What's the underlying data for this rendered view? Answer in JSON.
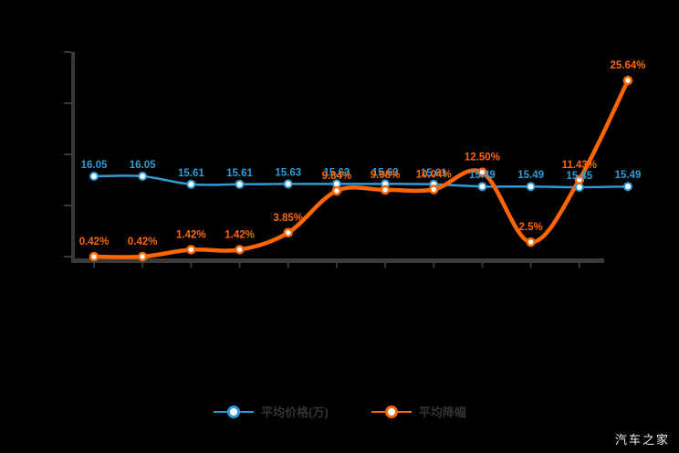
{
  "watermark": "汽车之家",
  "colors": {
    "background": "#000000",
    "axis": "#3a3a3a",
    "blue": "#2f9bd6",
    "orange": "#ff6600",
    "legend_text": "#333333",
    "watermark_text": "#f2f2f2",
    "marker_fill": "#ffffff"
  },
  "legend": [
    {
      "label": "平均价格(万)",
      "color": "#2f9bd6"
    },
    {
      "label": "平均降幅",
      "color": "#ff6600"
    }
  ],
  "chart_data": {
    "type": "line",
    "title": "",
    "xlabel": "",
    "ylabel": "",
    "grid": false,
    "legend_position": "bottom",
    "axis_tick_labels_visible": false,
    "points_count": 12,
    "series": [
      {
        "name": "平均价格(万)",
        "color": "#2f9bd6",
        "unit": "万",
        "values": [
          16.05,
          16.05,
          15.61,
          15.61,
          15.63,
          15.63,
          15.63,
          15.61,
          15.49,
          15.49,
          15.45,
          15.49
        ],
        "labels": [
          "16.05",
          "16.05",
          "15.61",
          "15.61",
          "15.63",
          "15.63",
          "15.63",
          "15.61",
          "15.49",
          "15.49",
          "15.45",
          "15.49"
        ]
      },
      {
        "name": "平均降幅",
        "color": "#ff6600",
        "unit": "%",
        "values": [
          0.42,
          0.42,
          1.42,
          1.42,
          3.85,
          9.84,
          9.98,
          10.04,
          12.5,
          2.5,
          11.43,
          25.64
        ],
        "labels": [
          "0.42%",
          "0.42%",
          "1.42%",
          "1.42%",
          "3.85%",
          "9.84%",
          "9.98%",
          "10.04%",
          "12.50%",
          "2.5%",
          "11.43%",
          "25.64%"
        ]
      }
    ]
  }
}
